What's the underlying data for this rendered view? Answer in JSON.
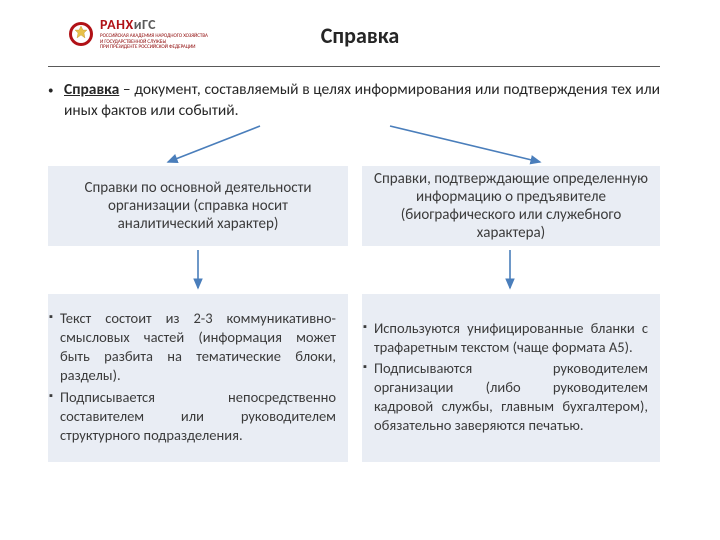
{
  "logo": {
    "brand_prefix": "РАНХ",
    "brand_suffix": "иГС",
    "prefix_color": "#b11116",
    "suffix_color": "#5a5a5a",
    "subtitle": "РОССИЙСКАЯ АКАДЕМИЯ НАРОДНОГО ХОЗЯЙСТВА\nИ ГОСУДАРСТВЕННОЙ СЛУЖБЫ\nПРИ ПРЕЗИДЕНТЕ РОССИЙСКОЙ ФЕДЕРАЦИИ",
    "emblem_bg": "#b11116",
    "emblem_fg": "#e7c14a",
    "brand_fontsize": 14
  },
  "title": {
    "text": "Справка",
    "fontsize": 22,
    "color": "#262626"
  },
  "definition": {
    "term": "Справка",
    "text": " – документ, составляемый в целях информирования или подтверждения тех или иных фактов или событий.",
    "fontsize": 15.5
  },
  "boxes": {
    "bg_color": "#e9edf4",
    "text_color": "#3b3b3b",
    "top_fontsize": 15,
    "bottom_fontsize": 14.5,
    "left_top": "Справки по основной деятельности организации (справка носит аналитический характер)",
    "right_top": "Справки, подтверждающие определенную информацию о предъявителе (биографического или служебного характера)",
    "left_bottom": [
      "Текст состоит из 2-3 коммуникативно-смысловых частей (информация может быть разбита на тематические блоки, разделы).",
      "Подписывается непосредственно составителем или руководителем структурного подразделения."
    ],
    "right_bottom": [
      "Используются унифицированные бланки с трафаретным текстом (чаще формата А5).",
      "Подписываются руководителем организации (либо руководителем кадровой службы, главным бухгалтером), обязательно заверяются печатью."
    ]
  },
  "arrows": {
    "stroke": "#4a7ebb",
    "fill": "#4a7ebb",
    "stroke_width": 1.6
  }
}
